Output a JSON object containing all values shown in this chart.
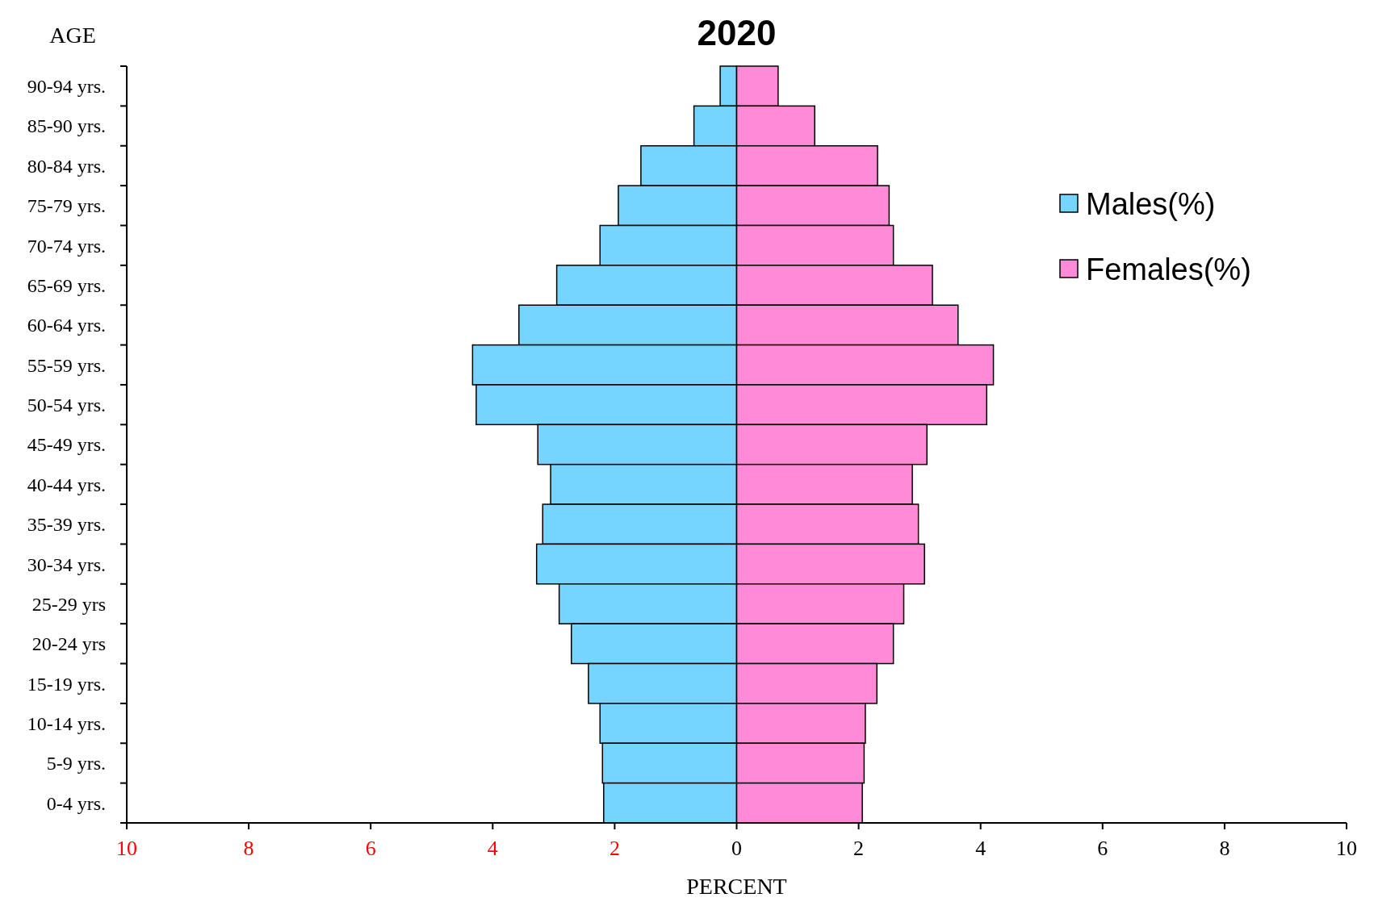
{
  "chart_data": {
    "type": "bar",
    "orientation": "horizontal",
    "title": "2020",
    "xlabel": "PERCENT",
    "ylabel": "AGE",
    "categories": [
      "90-94 yrs.",
      "85-90 yrs.",
      "80-84 yrs.",
      "75-79 yrs.",
      "70-74 yrs.",
      "65-69 yrs.",
      "60-64 yrs.",
      "55-59 yrs.",
      "50-54 yrs.",
      "45-49 yrs.",
      "40-44 yrs.",
      "35-39 yrs.",
      "30-34 yrs.",
      "25-29 yrs",
      "20-24 yrs",
      "15-19 yrs.",
      "10-14 yrs.",
      "5-9 yrs.",
      "0-4 yrs."
    ],
    "series": [
      {
        "name": "Males(%)",
        "color": "#75d5ff",
        "values": [
          -0.27,
          -0.7,
          -1.57,
          -1.94,
          -2.24,
          -2.95,
          -3.57,
          -4.33,
          -4.27,
          -3.26,
          -3.05,
          -3.18,
          -3.28,
          -2.91,
          -2.71,
          -2.43,
          -2.24,
          -2.2,
          -2.18
        ]
      },
      {
        "name": "Females(%)",
        "color": "#ff8ad8",
        "values": [
          0.68,
          1.28,
          2.31,
          2.5,
          2.57,
          3.21,
          3.63,
          4.21,
          4.1,
          3.12,
          2.88,
          2.98,
          3.08,
          2.74,
          2.57,
          2.3,
          2.11,
          2.09,
          2.06
        ]
      }
    ],
    "xlim": [
      -10,
      10
    ],
    "xticks": [
      {
        "value": -10,
        "label": "10"
      },
      {
        "value": -8,
        "label": "8"
      },
      {
        "value": -6,
        "label": "6"
      },
      {
        "value": -4,
        "label": "4"
      },
      {
        "value": -2,
        "label": "2"
      },
      0,
      2,
      4,
      6,
      8,
      10
    ],
    "legend": "right",
    "grid": false,
    "stacked": true
  }
}
